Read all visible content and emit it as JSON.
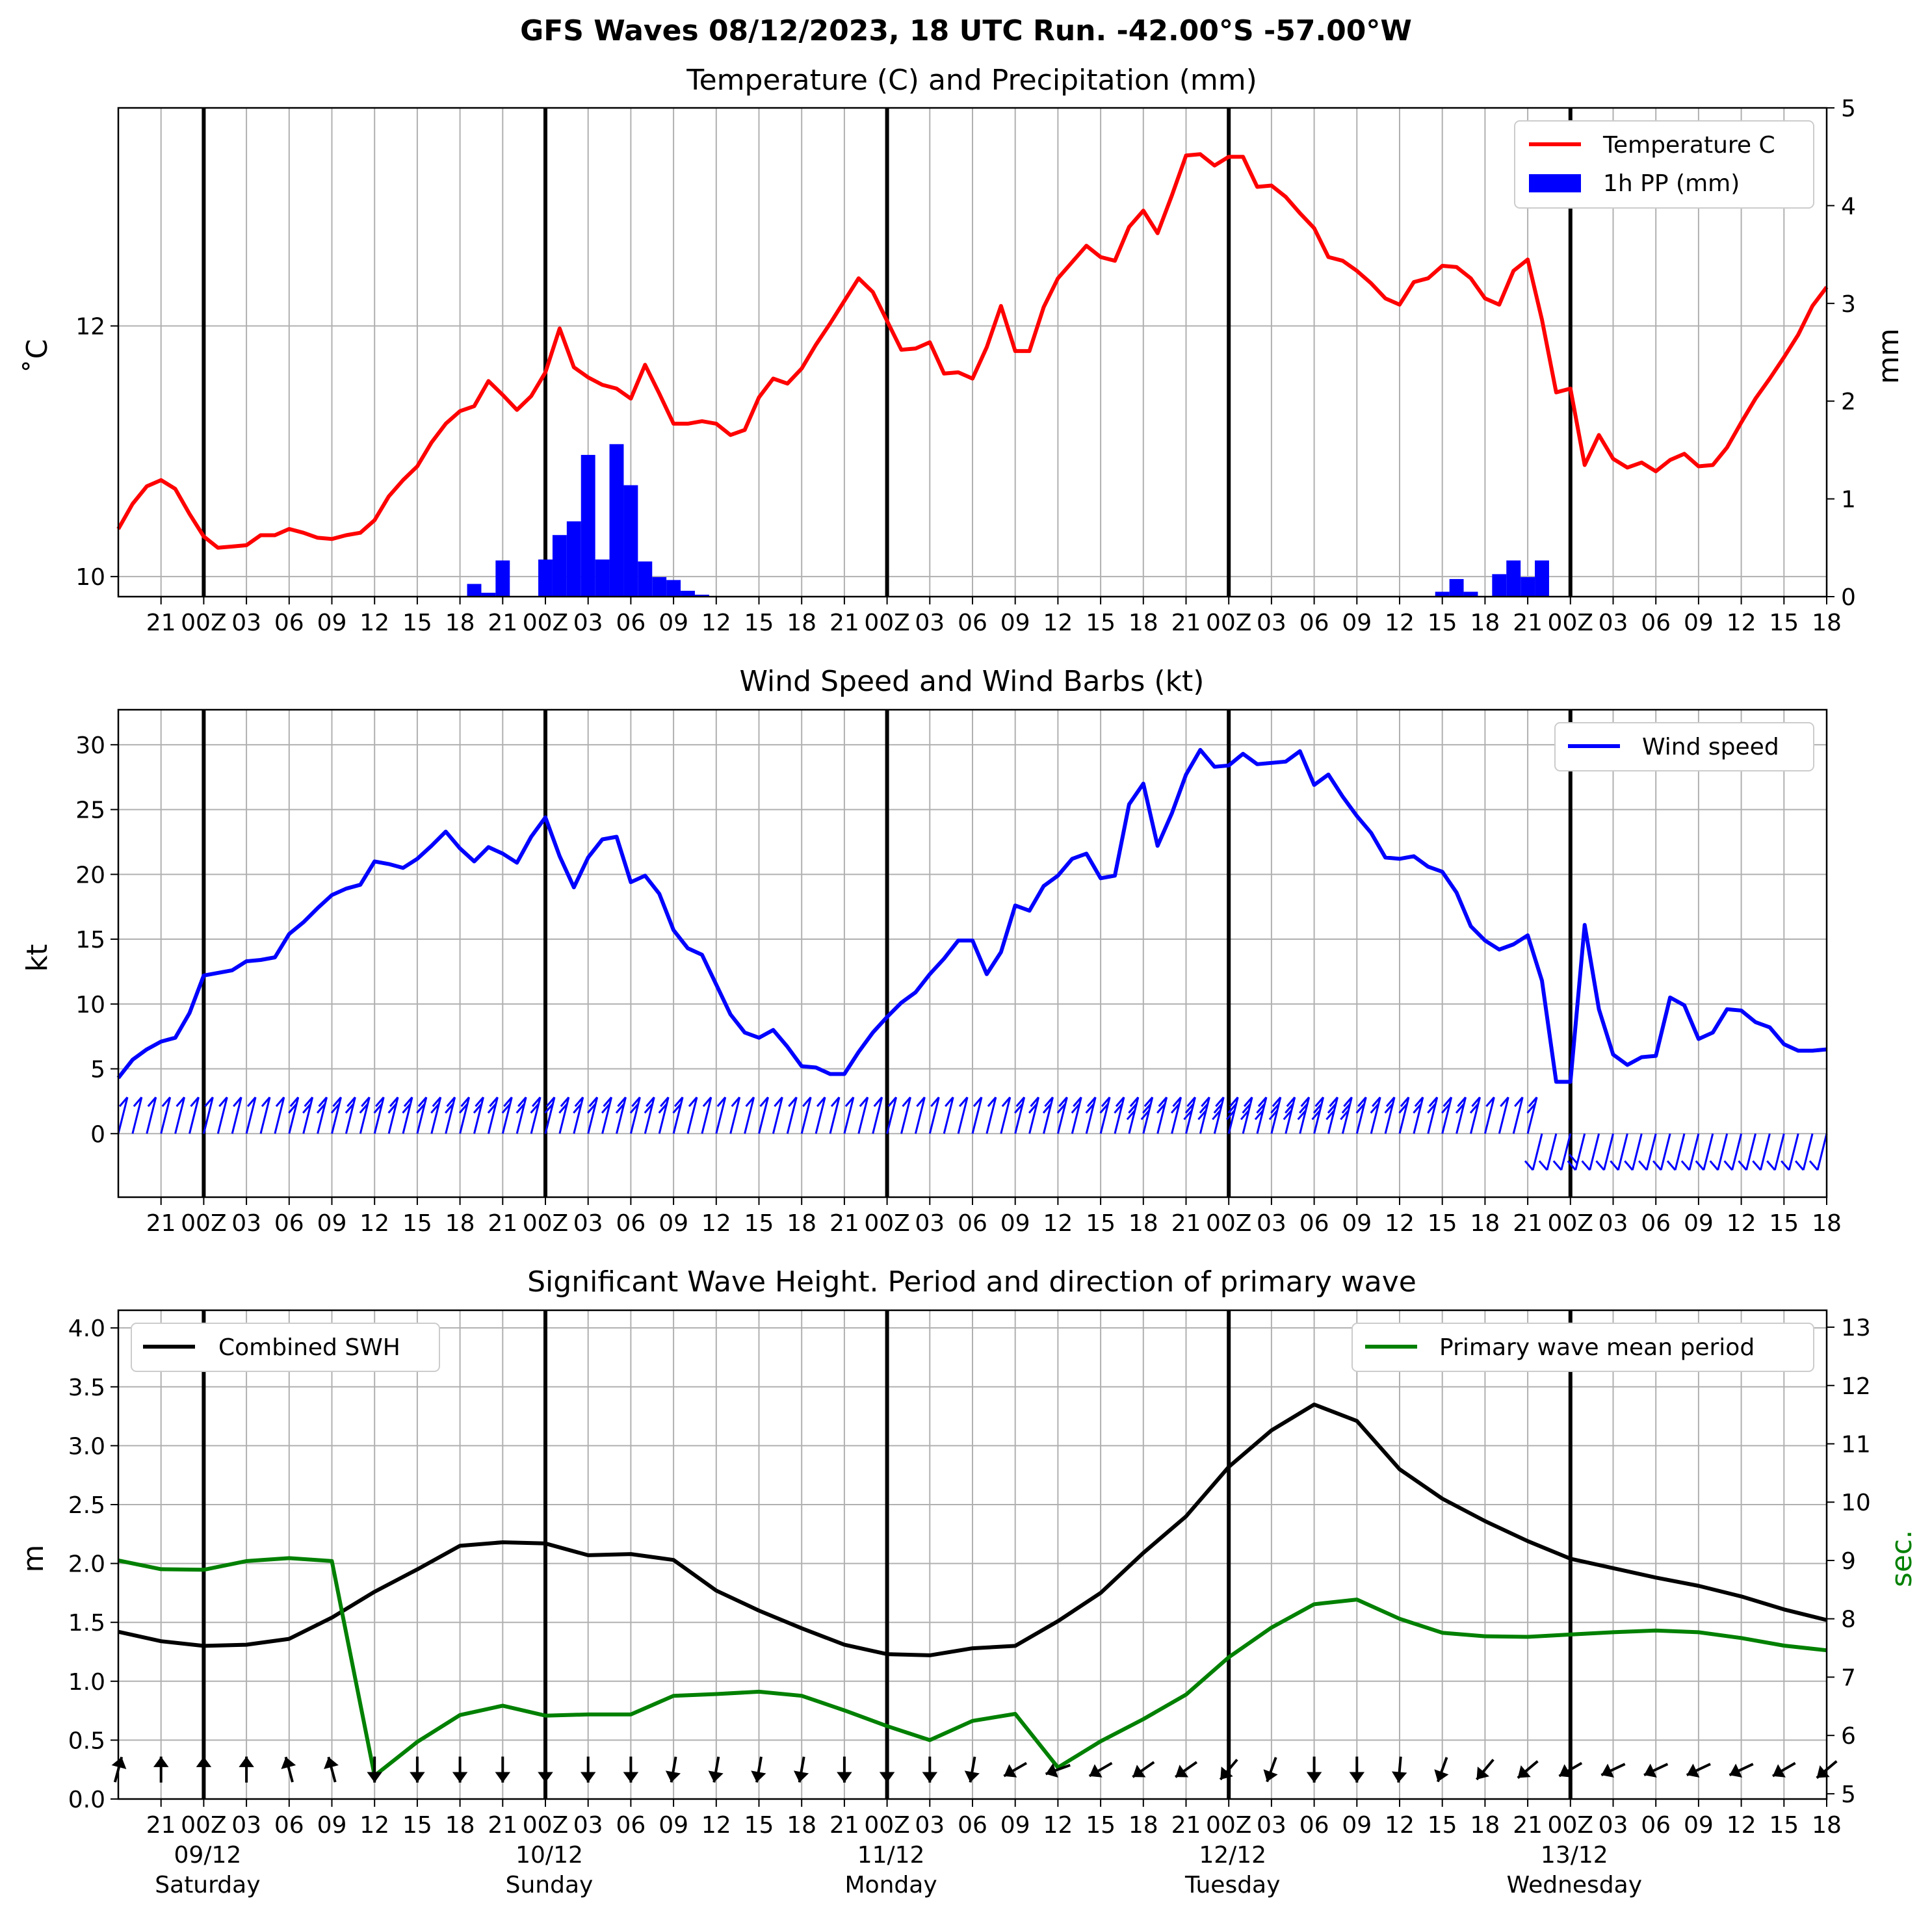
{
  "figure": {
    "suptitle": "GFS Waves 08/12/2023, 18 UTC Run. -42.00°S -57.00°W",
    "x_ticks": [
      "21",
      "00Z",
      "03",
      "06",
      "09",
      "12",
      "15",
      "18"
    ],
    "day_dates": [
      "09/12",
      "10/12",
      "11/12",
      "12/12",
      "13/12"
    ],
    "day_names": [
      "Saturday",
      "Sunday",
      "Monday",
      "Tuesday",
      "Wednesday"
    ]
  },
  "chart_data": [
    {
      "type": "line",
      "title": "Temperature (C) and Precipitation (mm)",
      "x_unit": "hours after 08/12/2023 18 UTC",
      "x_range": [
        0,
        120
      ],
      "ylabel": "˚C",
      "ylabel_right": "mm",
      "yticks": [
        10,
        12
      ],
      "yticks_right": [
        0,
        1,
        2,
        3,
        4,
        5
      ],
      "ylim": [
        9.84,
        13.74
      ],
      "ylim_right": [
        0,
        5
      ],
      "grid": true,
      "legend": "top-right",
      "series": [
        {
          "name": "Temperature C",
          "color": "#ff0000",
          "x": [
            0,
            1,
            2,
            3,
            4,
            5,
            6,
            7,
            8,
            9,
            10,
            11,
            12,
            13,
            14,
            15,
            16,
            17,
            18,
            19,
            20,
            21,
            22,
            23,
            24,
            25,
            26,
            27,
            28,
            29,
            30,
            31,
            32,
            33,
            34,
            35,
            36,
            37,
            38,
            39,
            40,
            41,
            42,
            43,
            44,
            45,
            46,
            47,
            48,
            49,
            50,
            51,
            52,
            53,
            54,
            55,
            56,
            57,
            58,
            59,
            60,
            61,
            62,
            63,
            64,
            65,
            66,
            67,
            68,
            69,
            70,
            71,
            72,
            73,
            74,
            75,
            76,
            77,
            78,
            79,
            80,
            81,
            82,
            83,
            84,
            85,
            86,
            87,
            88,
            89,
            90,
            91,
            92,
            93,
            94,
            95,
            96,
            97,
            98,
            99,
            100,
            101,
            102,
            103,
            104,
            105,
            106,
            107,
            108,
            109,
            110,
            111,
            112,
            113,
            114,
            115,
            116,
            117,
            118,
            119,
            120
          ],
          "values": [
            10.38,
            10.58,
            10.72,
            10.77,
            10.7,
            10.5,
            10.32,
            10.23,
            10.24,
            10.25,
            10.33,
            10.33,
            10.38,
            10.35,
            10.31,
            10.3,
            10.33,
            10.35,
            10.45,
            10.64,
            10.77,
            10.88,
            11.07,
            11.22,
            11.32,
            11.36,
            11.56,
            11.45,
            11.33,
            11.44,
            11.63,
            11.98,
            11.67,
            11.59,
            11.53,
            11.5,
            11.42,
            11.69,
            11.46,
            11.22,
            11.22,
            11.24,
            11.22,
            11.13,
            11.17,
            11.43,
            11.58,
            11.54,
            11.66,
            11.85,
            12.02,
            12.2,
            12.38,
            12.27,
            12.04,
            11.81,
            11.82,
            11.87,
            11.62,
            11.63,
            11.58,
            11.83,
            12.16,
            11.8,
            11.8,
            12.15,
            12.38,
            12.51,
            12.64,
            12.55,
            12.52,
            12.79,
            12.92,
            12.74,
            13.04,
            13.36,
            13.37,
            13.28,
            13.35,
            13.35,
            13.11,
            13.12,
            13.03,
            12.9,
            12.78,
            12.55,
            12.52,
            12.44,
            12.34,
            12.22,
            12.17,
            12.35,
            12.38,
            12.48,
            12.47,
            12.38,
            12.22,
            12.17,
            12.44,
            12.53,
            12.05,
            11.47,
            11.5,
            10.89,
            11.13,
            10.94,
            10.87,
            10.91,
            10.84,
            10.93,
            10.98,
            10.88,
            10.89,
            11.03,
            11.23,
            11.42,
            11.58,
            11.75,
            11.93,
            12.16,
            12.31
          ]
        },
        {
          "name": "1h PP (mm)",
          "color": "#0000ff",
          "axis": "right",
          "type": "bar",
          "x": [
            25,
            26,
            27,
            30,
            31,
            32,
            33,
            34,
            35,
            36,
            37,
            38,
            39,
            40,
            41,
            93,
            94,
            95,
            97,
            98,
            99,
            100
          ],
          "values": [
            0.13,
            0.04,
            0.37,
            0.38,
            0.63,
            0.77,
            1.45,
            0.38,
            1.56,
            1.14,
            0.36,
            0.2,
            0.17,
            0.06,
            0.02,
            0.05,
            0.18,
            0.05,
            0.23,
            0.37,
            0.2,
            0.37
          ]
        }
      ]
    },
    {
      "type": "line",
      "title": "Wind Speed and Wind Barbs (kt)",
      "x_unit": "hours after 08/12/2023 18 UTC",
      "x_range": [
        0,
        120
      ],
      "ylabel": "kt",
      "yticks": [
        0,
        5,
        10,
        15,
        20,
        25,
        30
      ],
      "ylim": [
        -4.9,
        32.7
      ],
      "grid": true,
      "legend": "top-right",
      "series": [
        {
          "name": "Wind speed",
          "color": "#0000ff",
          "x": [
            0,
            1,
            2,
            3,
            4,
            5,
            6,
            7,
            8,
            9,
            10,
            11,
            12,
            13,
            14,
            15,
            16,
            17,
            18,
            19,
            20,
            21,
            22,
            23,
            24,
            25,
            26,
            27,
            28,
            29,
            30,
            31,
            32,
            33,
            34,
            35,
            36,
            37,
            38,
            39,
            40,
            41,
            42,
            43,
            44,
            45,
            46,
            47,
            48,
            49,
            50,
            51,
            52,
            53,
            54,
            55,
            56,
            57,
            58,
            59,
            60,
            61,
            62,
            63,
            64,
            65,
            66,
            67,
            68,
            69,
            70,
            71,
            72,
            73,
            74,
            75,
            76,
            77,
            78,
            79,
            80,
            81,
            82,
            83,
            84,
            85,
            86,
            87,
            88,
            89,
            90,
            91,
            92,
            93,
            94,
            95,
            96,
            97,
            98,
            99,
            100,
            101,
            102,
            103,
            104,
            105,
            106,
            107,
            108,
            109,
            110,
            111,
            112,
            113,
            114,
            115,
            116,
            117,
            118,
            119,
            120
          ],
          "values": [
            4.3,
            5.7,
            6.5,
            7.1,
            7.4,
            9.3,
            12.2,
            12.4,
            12.6,
            13.3,
            13.4,
            13.6,
            15.4,
            16.3,
            17.4,
            18.4,
            18.9,
            19.2,
            21.0,
            20.8,
            20.5,
            21.2,
            22.2,
            23.3,
            22.0,
            21.0,
            22.1,
            21.6,
            20.9,
            22.9,
            24.4,
            21.4,
            19.0,
            21.3,
            22.7,
            22.9,
            19.4,
            19.9,
            18.5,
            15.7,
            14.3,
            13.8,
            11.5,
            9.2,
            7.8,
            7.4,
            8.0,
            6.7,
            5.2,
            5.1,
            4.6,
            4.6,
            6.3,
            7.8,
            9.0,
            10.1,
            10.9,
            12.3,
            13.5,
            14.9,
            14.9,
            12.3,
            14.0,
            17.6,
            17.2,
            19.1,
            19.9,
            21.2,
            21.6,
            19.7,
            19.9,
            25.4,
            27.0,
            22.2,
            24.7,
            27.7,
            29.6,
            28.3,
            28.4,
            29.3,
            28.5,
            28.6,
            28.7,
            29.5,
            26.9,
            27.7,
            26.0,
            24.5,
            23.2,
            21.3,
            21.2,
            21.4,
            20.6,
            20.2,
            18.6,
            16.0,
            14.9,
            14.2,
            14.6,
            15.3,
            11.8,
            4.0,
            4.0,
            16.1,
            9.6,
            6.1,
            5.3,
            5.9,
            6.0,
            10.5,
            9.9,
            7.3,
            7.8,
            9.6,
            9.5,
            8.6,
            8.2,
            6.9,
            6.4,
            6.4,
            6.5
          ]
        }
      ]
    },
    {
      "type": "line",
      "title": "Significant Wave Height. Period and direction of primary wave",
      "x_unit": "hours after 08/12/2023 18 UTC",
      "x_range": [
        0,
        120
      ],
      "ylabel": "m",
      "ylabel_right": "sec.",
      "yticks": [
        0.0,
        0.5,
        1.0,
        1.5,
        2.0,
        2.5,
        3.0,
        3.5,
        4.0
      ],
      "yticks_right": [
        5,
        6,
        7,
        8,
        9,
        10,
        11,
        12,
        13
      ],
      "ylim": [
        0.0,
        4.15
      ],
      "ylim_right": [
        4.91,
        13.29
      ],
      "grid": true,
      "legend": "top-left and top-right",
      "series": [
        {
          "name": "Combined SWH",
          "color": "#000000",
          "x": [
            0,
            3,
            6,
            9,
            12,
            15,
            18,
            21,
            24,
            27,
            30,
            33,
            36,
            39,
            42,
            45,
            48,
            51,
            54,
            57,
            60,
            63,
            66,
            69,
            72,
            75,
            78,
            81,
            84,
            87,
            90,
            93,
            96,
            99,
            102,
            105,
            108,
            111,
            114,
            117,
            120
          ],
          "values": [
            1.42,
            1.34,
            1.3,
            1.31,
            1.36,
            1.54,
            1.76,
            1.95,
            2.15,
            2.18,
            2.17,
            2.07,
            2.08,
            2.03,
            1.77,
            1.6,
            1.45,
            1.31,
            1.23,
            1.22,
            1.28,
            1.3,
            1.51,
            1.75,
            2.09,
            2.4,
            2.82,
            3.13,
            3.35,
            3.21,
            2.8,
            2.55,
            2.36,
            2.19,
            2.04,
            1.96,
            1.88,
            1.81,
            1.72,
            1.61,
            1.52
          ]
        },
        {
          "name": "Primary wave mean period",
          "color": "#008000",
          "axis": "right",
          "x": [
            0,
            3,
            6,
            9,
            12,
            15,
            18,
            21,
            24,
            27,
            30,
            33,
            36,
            39,
            42,
            45,
            48,
            51,
            54,
            57,
            60,
            63,
            66,
            69,
            72,
            75,
            78,
            81,
            84,
            87,
            90,
            93,
            96,
            99,
            102,
            105,
            108,
            111,
            114,
            117,
            120
          ],
          "values": [
            9.0,
            8.85,
            8.84,
            8.99,
            9.04,
            8.99,
            5.31,
            5.89,
            6.35,
            6.51,
            6.34,
            6.36,
            6.36,
            6.68,
            6.71,
            6.75,
            6.68,
            6.43,
            6.16,
            5.92,
            6.25,
            6.37,
            5.45,
            5.9,
            6.28,
            6.7,
            7.34,
            7.85,
            8.25,
            8.33,
            8.0,
            7.76,
            7.7,
            7.69,
            7.73,
            7.77,
            7.8,
            7.77,
            7.67,
            7.54,
            7.46
          ]
        }
      ],
      "wave_direction_arrows": {
        "x": [
          0,
          3,
          6,
          9,
          12,
          15,
          18,
          21,
          24,
          27,
          30,
          33,
          36,
          39,
          42,
          45,
          48,
          51,
          54,
          57,
          60,
          63,
          66,
          69,
          72,
          75,
          78,
          81,
          84,
          87,
          90,
          93,
          96,
          99,
          102,
          105,
          108,
          111,
          114,
          117,
          120
        ],
        "direction_deg": [
          15,
          0,
          0,
          0,
          345,
          345,
          180,
          180,
          180,
          180,
          180,
          180,
          180,
          190,
          190,
          190,
          190,
          180,
          180,
          180,
          190,
          240,
          250,
          240,
          235,
          235,
          220,
          200,
          180,
          180,
          185,
          200,
          220,
          230,
          240,
          245,
          245,
          245,
          245,
          240,
          230
        ]
      }
    }
  ]
}
